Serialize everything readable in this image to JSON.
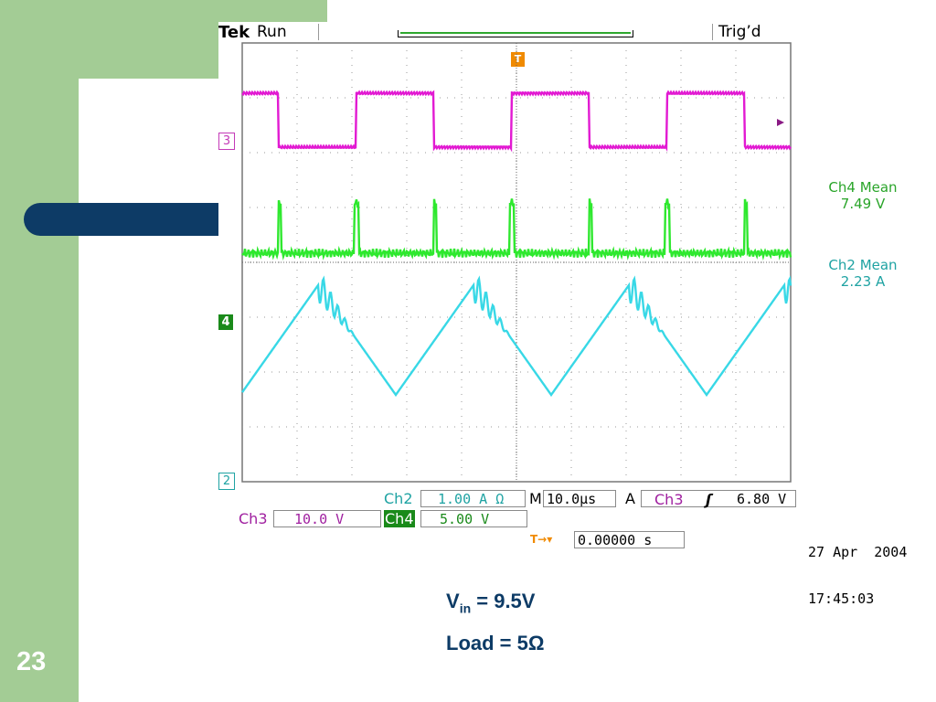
{
  "slide": {
    "number": "23",
    "caption": {
      "vin_label": "V",
      "vin_sub": "in",
      "vin_value": " = 9.5V",
      "load": "Load = 5Ω"
    }
  },
  "scope": {
    "brand": "Tek",
    "run_state": "Run",
    "trig_status": "Trig’d",
    "trigger_marker": "T",
    "channel_markers": {
      "ch3": "3",
      "ch4": "4",
      "ch2": "2"
    },
    "measurements": [
      {
        "label": "Ch4 Mean",
        "value": "7.49 V",
        "color": "#2aa52a"
      },
      {
        "label": "Ch2 Mean",
        "value": "2.23 A",
        "color": "#1fa3a3"
      }
    ],
    "readouts": {
      "ch2_label": "Ch2",
      "ch2_scale": "1.00 A Ω",
      "time_label": "M",
      "timebase": "10.0μs",
      "trig_mode": "A",
      "trig_source": "Ch3",
      "trig_slope": "ʃ",
      "trig_level": "6.80 V",
      "ch3_label": "Ch3",
      "ch3_scale": "10.0 V",
      "ch4_label": "Ch4",
      "ch4_scale": "5.00 V",
      "delay_icon": "T→▾",
      "delay_value": "0.00000 s"
    },
    "date": "27 Apr  2004",
    "time": "17:45:03",
    "colors": {
      "ch3": "#e21ad2",
      "ch4": "#2ee82e",
      "ch2": "#38d8e6",
      "trigger": "#f08a00",
      "grid": "#777777"
    }
  }
}
